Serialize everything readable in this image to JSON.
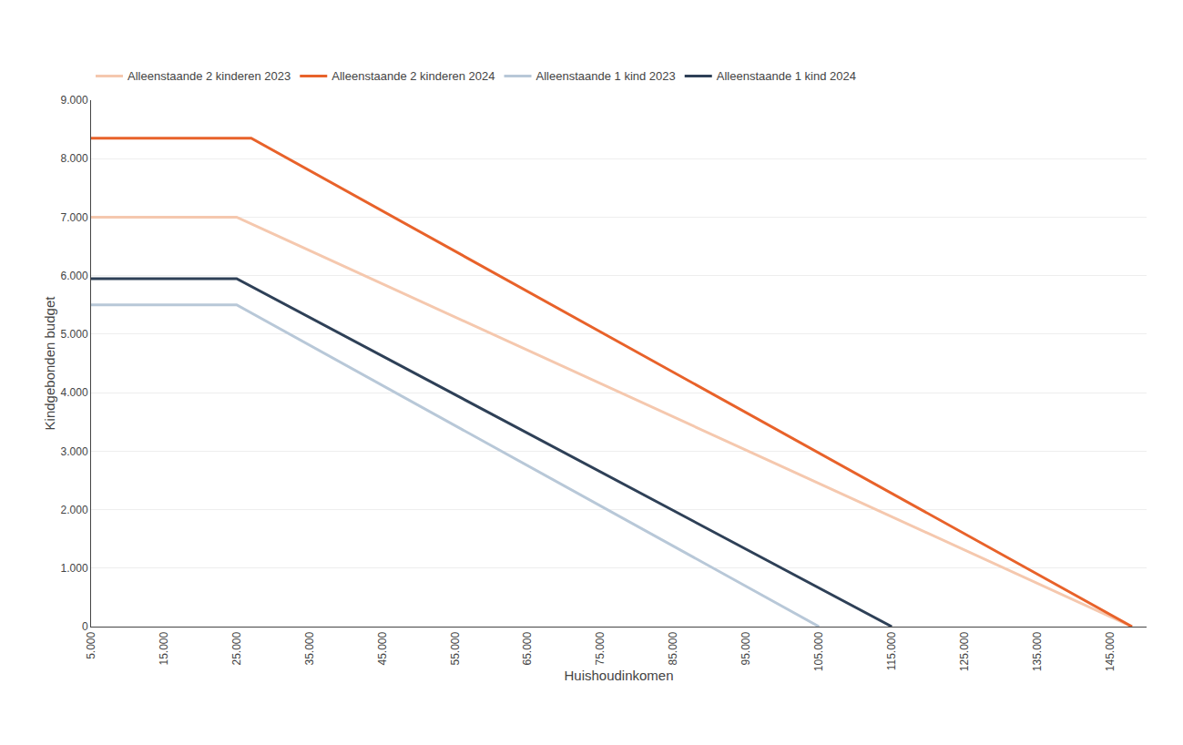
{
  "chart_data": {
    "type": "line",
    "xlabel": "Huishoudinkomen",
    "ylabel": "Kindgebonden budget",
    "series": [
      {
        "name": "Alleenstaande 2 kinderen 2023",
        "color": "#f5c8ae",
        "x": [
          5000,
          25000,
          148000
        ],
        "values": [
          7000,
          7000,
          0
        ]
      },
      {
        "name": "Alleenstaande 2 kinderen 2024",
        "color": "#E8622A",
        "x": [
          5000,
          27000,
          148000
        ],
        "values": [
          8350,
          8350,
          0
        ]
      },
      {
        "name": "Alleenstaande 1 kind 2023",
        "color": "#b8c8d8",
        "x": [
          5000,
          25000,
          105000
        ],
        "values": [
          5500,
          5500,
          0
        ]
      },
      {
        "name": "Alleenstaande 1 kind 2024",
        "color": "#2e4057",
        "x": [
          5000,
          25000,
          115000
        ],
        "values": [
          5950,
          5950,
          0
        ]
      }
    ],
    "xlim": [
      5000,
      150000
    ],
    "ylim": [
      0,
      9000
    ],
    "xticks": [
      {
        "value": 5000,
        "label": "5.000"
      },
      {
        "value": 15000,
        "label": "15.000"
      },
      {
        "value": 25000,
        "label": "25.000"
      },
      {
        "value": 35000,
        "label": "35.000"
      },
      {
        "value": 45000,
        "label": "45.000"
      },
      {
        "value": 55000,
        "label": "55.000"
      },
      {
        "value": 65000,
        "label": "65.000"
      },
      {
        "value": 75000,
        "label": "75.000"
      },
      {
        "value": 85000,
        "label": "85.000"
      },
      {
        "value": 95000,
        "label": "95.000"
      },
      {
        "value": 105000,
        "label": "105.000"
      },
      {
        "value": 115000,
        "label": "115.000"
      },
      {
        "value": 125000,
        "label": "125.000"
      },
      {
        "value": 135000,
        "label": "135.000"
      },
      {
        "value": 145000,
        "label": "145.000"
      }
    ],
    "yticks": [
      0,
      {
        "value": 1000,
        "label": "1.000"
      },
      {
        "value": 2000,
        "label": "2.000"
      },
      {
        "value": 3000,
        "label": "3.000"
      },
      {
        "value": 4000,
        "label": "4.000"
      },
      {
        "value": 5000,
        "label": "5.000"
      },
      {
        "value": 6000,
        "label": "6.000"
      },
      {
        "value": 7000,
        "label": "7.000"
      },
      {
        "value": 8000,
        "label": "8.000"
      },
      {
        "value": 9000,
        "label": "9.000"
      }
    ],
    "grid": "y",
    "legend": "top"
  }
}
